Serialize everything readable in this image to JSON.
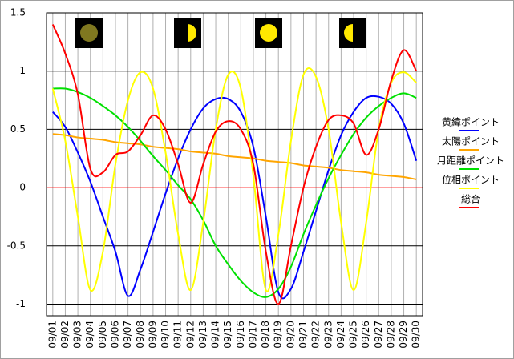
{
  "chart_data": {
    "type": "line",
    "categories": [
      "09/01",
      "09/02",
      "09/03",
      "09/04",
      "09/05",
      "09/06",
      "09/07",
      "09/08",
      "09/09",
      "09/10",
      "09/11",
      "09/12",
      "09/13",
      "09/14",
      "09/15",
      "09/16",
      "09/17",
      "09/18",
      "09/19",
      "09/20",
      "09/21",
      "09/22",
      "09/23",
      "09/24",
      "09/25",
      "09/26",
      "09/27",
      "09/28",
      "09/29",
      "09/30"
    ],
    "series": [
      {
        "name": "黄緯ポイント",
        "color": "#0000ff",
        "values": [
          0.65,
          0.52,
          0.3,
          0.05,
          -0.25,
          -0.55,
          -0.93,
          -0.7,
          -0.38,
          -0.05,
          0.25,
          0.5,
          0.68,
          0.76,
          0.76,
          0.65,
          0.35,
          -0.25,
          -0.9,
          -0.87,
          -0.55,
          -0.2,
          0.15,
          0.45,
          0.65,
          0.77,
          0.78,
          0.72,
          0.55,
          0.23
        ]
      },
      {
        "name": "太陽ポイント",
        "color": "#ffa500",
        "values": [
          0.46,
          0.45,
          0.43,
          0.42,
          0.41,
          0.39,
          0.38,
          0.37,
          0.35,
          0.34,
          0.33,
          0.31,
          0.3,
          0.29,
          0.27,
          0.26,
          0.25,
          0.23,
          0.22,
          0.21,
          0.19,
          0.18,
          0.17,
          0.15,
          0.14,
          0.13,
          0.11,
          0.1,
          0.09,
          0.07
        ]
      },
      {
        "name": "月距離ポイント",
        "color": "#00e000",
        "values": [
          0.85,
          0.85,
          0.82,
          0.77,
          0.7,
          0.62,
          0.52,
          0.4,
          0.27,
          0.15,
          0.02,
          -0.1,
          -0.28,
          -0.5,
          -0.66,
          -0.8,
          -0.9,
          -0.94,
          -0.87,
          -0.68,
          -0.4,
          -0.15,
          0.08,
          0.28,
          0.46,
          0.6,
          0.7,
          0.77,
          0.81,
          0.77
        ]
      },
      {
        "name": "位相ポイント",
        "color": "#ffff00",
        "values": [
          0.85,
          0.4,
          -0.25,
          -0.88,
          -0.55,
          0.2,
          0.75,
          0.99,
          0.85,
          0.3,
          -0.4,
          -0.88,
          -0.3,
          0.5,
          0.97,
          0.85,
          0.1,
          -0.88,
          -0.4,
          0.4,
          0.97,
          0.95,
          0.5,
          -0.3,
          -0.88,
          -0.3,
          0.5,
          0.9,
          0.99,
          0.9
        ]
      },
      {
        "name": "総合",
        "color": "#ff0000",
        "values": [
          1.4,
          1.15,
          0.8,
          0.16,
          0.13,
          0.28,
          0.31,
          0.45,
          0.62,
          0.5,
          0.2,
          -0.13,
          0.2,
          0.48,
          0.57,
          0.5,
          0.2,
          -0.55,
          -1.0,
          -0.5,
          0.0,
          0.35,
          0.58,
          0.62,
          0.55,
          0.28,
          0.5,
          0.92,
          1.18,
          1.0
        ]
      }
    ],
    "ylim": [
      -1.1,
      1.5
    ],
    "yticks": [
      -1,
      -0.5,
      0,
      0.5,
      1,
      1.5
    ],
    "grid": true,
    "grid_color": "#000000",
    "zero_line_color": "#ff0000",
    "category_grid_color": "#b0b0b0",
    "legend": "right"
  }
}
